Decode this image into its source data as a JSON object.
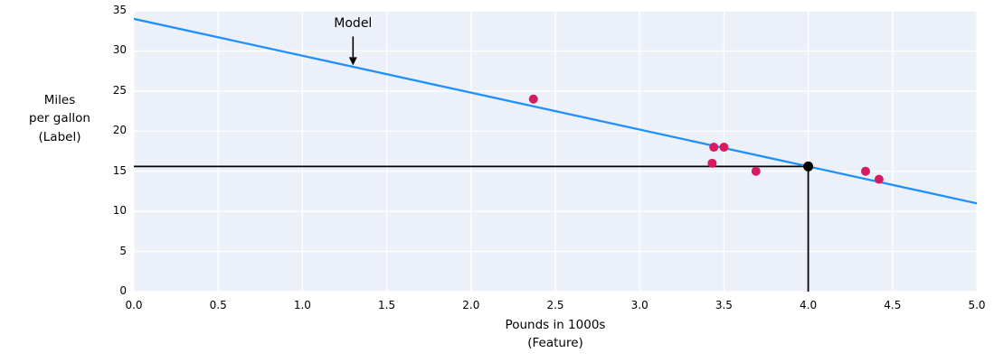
{
  "figure": {
    "y_axis_label": "Miles\nper gallon\n(Label)",
    "x_axis_label": "Pounds in 1000s\n(Feature)"
  },
  "chart_data": {
    "type": "scatter",
    "title": "",
    "xlabel": "Pounds in 1000s (Feature)",
    "ylabel": "Miles per gallon (Label)",
    "xlim": [
      0,
      5
    ],
    "ylim": [
      0,
      35
    ],
    "grid": true,
    "legend": "none",
    "plot_background": "#ecf0f8",
    "grid_color": "#ffffff",
    "x_ticks": [
      "0.0",
      "0.5",
      "1.0",
      "1.5",
      "2.0",
      "2.5",
      "3.0",
      "3.5",
      "4.0",
      "4.5",
      "5.0"
    ],
    "y_ticks": [
      "0",
      "5",
      "10",
      "15",
      "20",
      "25",
      "30",
      "35"
    ],
    "points": {
      "name": "observations",
      "color": "#d81b60",
      "data": [
        [
          2.37,
          24
        ],
        [
          3.43,
          16
        ],
        [
          3.44,
          18
        ],
        [
          3.5,
          18
        ],
        [
          3.69,
          15
        ],
        [
          4.34,
          15
        ],
        [
          4.42,
          14
        ]
      ]
    },
    "model_line": {
      "label": "Model",
      "color": "#1e90ff",
      "intercept": 34,
      "slope": -4.6
    },
    "prediction": {
      "x": 4.0,
      "y": 15.6,
      "color": "#000000"
    },
    "annotation": {
      "text": "Model",
      "x": 1.3,
      "text_y": 33.3,
      "arrow_from_y": 31.8,
      "arrow_to_y": 28.2
    }
  }
}
